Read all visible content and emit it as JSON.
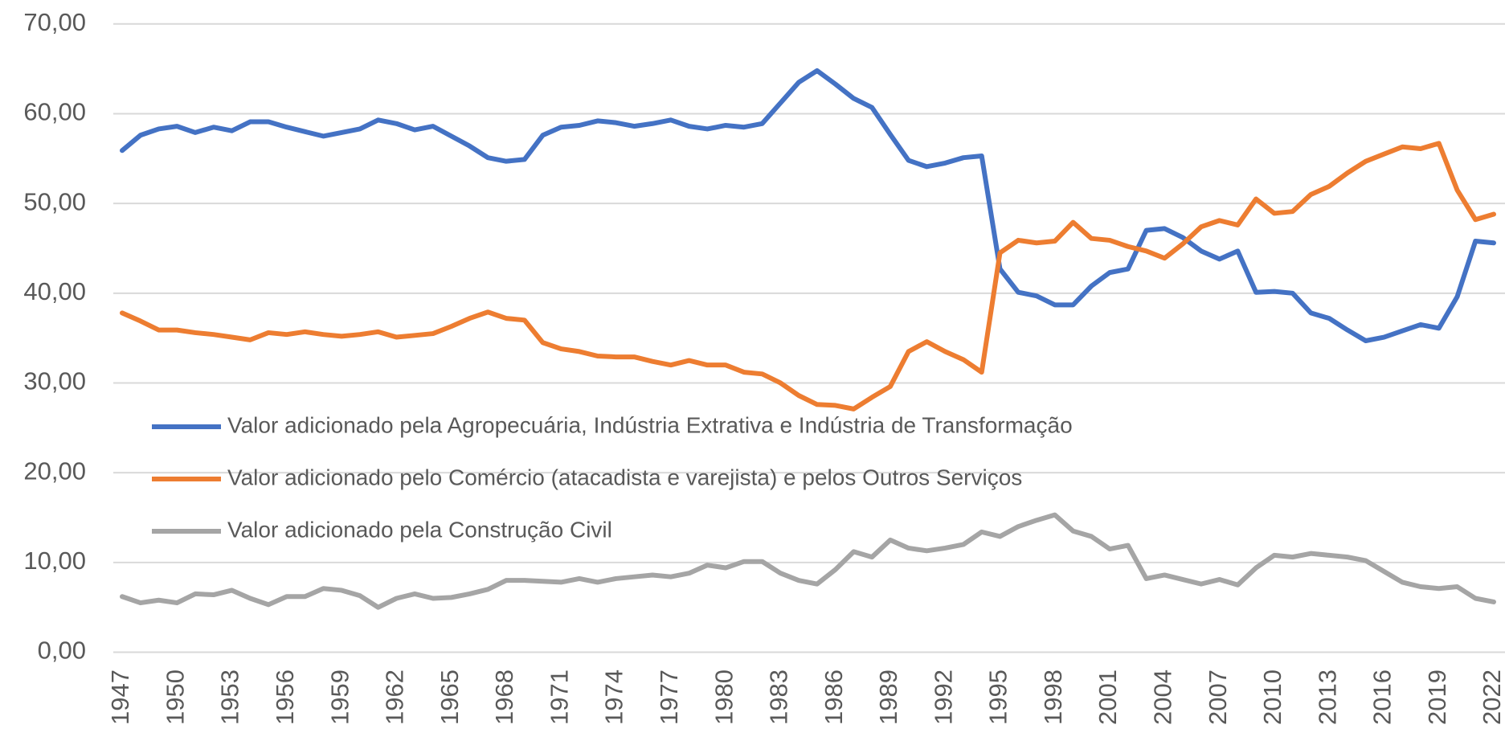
{
  "chart_data": {
    "type": "line",
    "x": [
      1947,
      1948,
      1949,
      1950,
      1951,
      1952,
      1953,
      1954,
      1955,
      1956,
      1957,
      1958,
      1959,
      1960,
      1961,
      1962,
      1963,
      1964,
      1965,
      1966,
      1967,
      1968,
      1969,
      1970,
      1971,
      1972,
      1973,
      1974,
      1975,
      1976,
      1977,
      1978,
      1979,
      1980,
      1981,
      1982,
      1983,
      1984,
      1985,
      1986,
      1987,
      1988,
      1989,
      1990,
      1991,
      1992,
      1993,
      1994,
      1995,
      1996,
      1997,
      1998,
      1999,
      2000,
      2001,
      2002,
      2003,
      2004,
      2005,
      2006,
      2007,
      2008,
      2009,
      2010,
      2011,
      2012,
      2013,
      2014,
      2015,
      2016,
      2017,
      2018,
      2019,
      2020,
      2021,
      2022
    ],
    "series": [
      {
        "name": "Valor adicionado pela Agropecuária, Indústria Extrativa e Indústria de Transformação",
        "color": "#4472c4",
        "values": [
          55.9,
          57.6,
          58.3,
          58.6,
          57.9,
          58.5,
          58.1,
          59.1,
          59.1,
          58.5,
          58.0,
          57.5,
          57.9,
          58.3,
          59.3,
          58.9,
          58.2,
          58.6,
          57.5,
          56.4,
          55.1,
          54.7,
          54.9,
          57.6,
          58.5,
          58.7,
          59.2,
          59.0,
          58.6,
          58.9,
          59.3,
          58.6,
          58.3,
          58.7,
          58.5,
          58.9,
          61.2,
          63.5,
          64.8,
          63.3,
          61.7,
          60.7,
          57.7,
          54.8,
          54.1,
          54.5,
          55.1,
          55.3,
          42.7,
          40.1,
          39.7,
          38.7,
          38.7,
          40.8,
          42.3,
          42.7,
          47.0,
          47.2,
          46.2,
          44.7,
          43.8,
          44.7,
          40.1,
          40.2,
          40.0,
          37.8,
          37.2,
          35.9,
          34.7,
          35.1,
          35.8,
          36.5,
          36.1,
          39.6,
          45.8,
          45.6
        ]
      },
      {
        "name": "Valor adicionado pelo Comércio (atacadista e varejista) e pelos Outros Serviços",
        "color": "#ed7d31",
        "values": [
          37.8,
          36.9,
          35.9,
          35.9,
          35.6,
          35.4,
          35.1,
          34.8,
          35.6,
          35.4,
          35.7,
          35.4,
          35.2,
          35.4,
          35.7,
          35.1,
          35.3,
          35.5,
          36.3,
          37.2,
          37.9,
          37.2,
          37.0,
          34.5,
          33.8,
          33.5,
          33.0,
          32.9,
          32.9,
          32.4,
          32.0,
          32.5,
          32.0,
          32.0,
          31.2,
          31.0,
          30.0,
          28.6,
          27.6,
          27.5,
          27.1,
          28.4,
          29.6,
          33.5,
          34.6,
          33.5,
          32.6,
          31.2,
          44.5,
          45.9,
          45.6,
          45.8,
          47.9,
          46.1,
          45.9,
          45.2,
          44.7,
          43.9,
          45.5,
          47.4,
          48.1,
          47.6,
          50.5,
          48.9,
          49.1,
          51.0,
          51.9,
          53.4,
          54.7,
          55.5,
          56.3,
          56.1,
          56.7,
          51.5,
          48.2,
          48.8
        ]
      },
      {
        "name": "Valor adicionado pela Construção Civil",
        "color": "#a5a5a5",
        "values": [
          6.2,
          5.5,
          5.8,
          5.5,
          6.5,
          6.4,
          6.9,
          6.0,
          5.3,
          6.2,
          6.2,
          7.1,
          6.9,
          6.3,
          5.0,
          6.0,
          6.5,
          6.0,
          6.1,
          6.5,
          7.0,
          8.0,
          8.0,
          7.9,
          7.8,
          8.2,
          7.8,
          8.2,
          8.4,
          8.6,
          8.4,
          8.8,
          9.7,
          9.4,
          10.1,
          10.1,
          8.8,
          8.0,
          7.6,
          9.2,
          11.2,
          10.6,
          12.5,
          11.6,
          11.3,
          11.6,
          12.0,
          13.4,
          12.9,
          14.0,
          14.7,
          15.3,
          13.5,
          12.9,
          11.5,
          11.9,
          8.2,
          8.6,
          8.1,
          7.6,
          8.1,
          7.5,
          9.4,
          10.8,
          10.6,
          11.0,
          10.8,
          10.6,
          10.2,
          9.0,
          7.8,
          7.3,
          7.1,
          7.3,
          6.0,
          5.6
        ]
      }
    ],
    "xlim": [
      1947,
      2022
    ],
    "xticks": [
      1947,
      1950,
      1953,
      1956,
      1959,
      1962,
      1965,
      1968,
      1971,
      1974,
      1977,
      1980,
      1983,
      1986,
      1989,
      1992,
      1995,
      1998,
      2001,
      2004,
      2007,
      2010,
      2013,
      2016,
      2019,
      2022
    ],
    "ylim": [
      0,
      70
    ],
    "yticks": [
      {
        "value": 0,
        "label": "0,00"
      },
      {
        "value": 10,
        "label": "10,00"
      },
      {
        "value": 20,
        "label": "20,00"
      },
      {
        "value": 30,
        "label": "30,00"
      },
      {
        "value": 40,
        "label": "40,00"
      },
      {
        "value": 50,
        "label": "50,00"
      },
      {
        "value": 60,
        "label": "60,00"
      },
      {
        "value": 70,
        "label": "70,00"
      }
    ],
    "grid": true
  }
}
